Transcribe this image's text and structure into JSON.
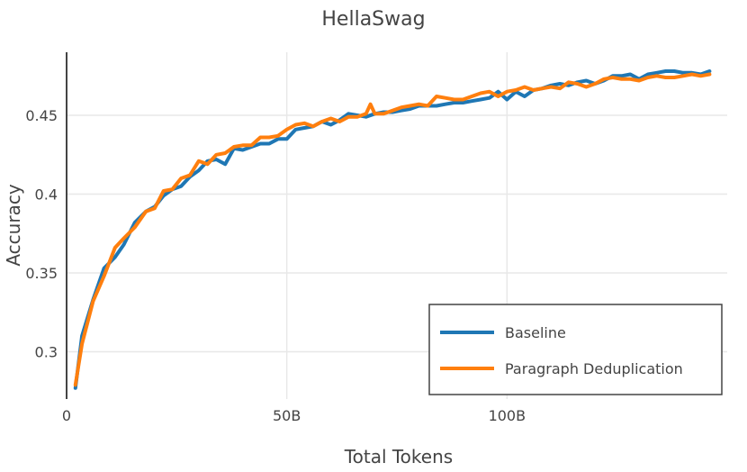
{
  "chart_data": {
    "type": "line",
    "title": "HellaSwag",
    "xlabel": "Total Tokens",
    "ylabel": "Accuracy",
    "x_unit": "tokens (billions)",
    "xlim": [
      0,
      150
    ],
    "ylim": [
      0.27,
      0.49
    ],
    "x_ticks": [
      {
        "value": 0,
        "label": "0"
      },
      {
        "value": 50,
        "label": "50B"
      },
      {
        "value": 100,
        "label": "100B"
      }
    ],
    "y_ticks": [
      {
        "value": 0.3,
        "label": "0.3"
      },
      {
        "value": 0.35,
        "label": "0.35"
      },
      {
        "value": 0.4,
        "label": "0.4"
      },
      {
        "value": 0.45,
        "label": "0.45"
      }
    ],
    "grid": true,
    "legend_position": "bottom-right",
    "series": [
      {
        "name": "Baseline",
        "color": "#1f77b4",
        "points": [
          [
            2,
            0.277
          ],
          [
            3.5,
            0.31
          ],
          [
            6,
            0.333
          ],
          [
            8.5,
            0.353
          ],
          [
            11,
            0.36
          ],
          [
            13,
            0.368
          ],
          [
            15.5,
            0.382
          ],
          [
            18,
            0.389
          ],
          [
            20,
            0.392
          ],
          [
            22,
            0.399
          ],
          [
            24,
            0.403
          ],
          [
            26,
            0.405
          ],
          [
            28,
            0.411
          ],
          [
            30,
            0.415
          ],
          [
            32,
            0.421
          ],
          [
            34,
            0.422
          ],
          [
            36,
            0.419
          ],
          [
            38,
            0.429
          ],
          [
            40,
            0.428
          ],
          [
            42,
            0.43
          ],
          [
            44,
            0.432
          ],
          [
            46,
            0.432
          ],
          [
            48,
            0.435
          ],
          [
            50,
            0.435
          ],
          [
            52,
            0.441
          ],
          [
            54,
            0.442
          ],
          [
            56,
            0.443
          ],
          [
            58,
            0.446
          ],
          [
            60,
            0.444
          ],
          [
            62,
            0.447
          ],
          [
            64,
            0.451
          ],
          [
            66,
            0.45
          ],
          [
            68,
            0.449
          ],
          [
            70,
            0.451
          ],
          [
            72,
            0.452
          ],
          [
            74,
            0.452
          ],
          [
            76,
            0.453
          ],
          [
            78,
            0.454
          ],
          [
            80,
            0.456
          ],
          [
            82,
            0.456
          ],
          [
            84,
            0.456
          ],
          [
            86,
            0.457
          ],
          [
            88,
            0.458
          ],
          [
            90,
            0.458
          ],
          [
            92,
            0.459
          ],
          [
            94,
            0.46
          ],
          [
            96,
            0.461
          ],
          [
            98,
            0.465
          ],
          [
            100,
            0.46
          ],
          [
            102,
            0.465
          ],
          [
            104,
            0.462
          ],
          [
            106,
            0.466
          ],
          [
            108,
            0.467
          ],
          [
            110,
            0.469
          ],
          [
            112,
            0.47
          ],
          [
            114,
            0.469
          ],
          [
            116,
            0.471
          ],
          [
            118,
            0.472
          ],
          [
            120,
            0.47
          ],
          [
            122,
            0.472
          ],
          [
            124,
            0.475
          ],
          [
            126,
            0.475
          ],
          [
            128,
            0.476
          ],
          [
            130,
            0.473
          ],
          [
            132,
            0.476
          ],
          [
            134,
            0.477
          ],
          [
            136,
            0.478
          ],
          [
            138,
            0.478
          ],
          [
            140,
            0.477
          ],
          [
            142,
            0.477
          ],
          [
            144,
            0.476
          ],
          [
            146,
            0.478
          ]
        ]
      },
      {
        "name": "Paragraph Deduplication",
        "color": "#ff7f0e",
        "points": [
          [
            2,
            0.279
          ],
          [
            3.5,
            0.305
          ],
          [
            6,
            0.332
          ],
          [
            8.5,
            0.348
          ],
          [
            11,
            0.366
          ],
          [
            13,
            0.372
          ],
          [
            15.5,
            0.379
          ],
          [
            18,
            0.389
          ],
          [
            20,
            0.391
          ],
          [
            22,
            0.402
          ],
          [
            24,
            0.403
          ],
          [
            26,
            0.41
          ],
          [
            28,
            0.412
          ],
          [
            30,
            0.421
          ],
          [
            32,
            0.419
          ],
          [
            34,
            0.425
          ],
          [
            36,
            0.426
          ],
          [
            38,
            0.43
          ],
          [
            40,
            0.431
          ],
          [
            42,
            0.431
          ],
          [
            44,
            0.436
          ],
          [
            46,
            0.436
          ],
          [
            48,
            0.437
          ],
          [
            50,
            0.441
          ],
          [
            52,
            0.444
          ],
          [
            54,
            0.445
          ],
          [
            56,
            0.443
          ],
          [
            58,
            0.446
          ],
          [
            60,
            0.448
          ],
          [
            62,
            0.446
          ],
          [
            64,
            0.449
          ],
          [
            66,
            0.449
          ],
          [
            68,
            0.451
          ],
          [
            69,
            0.457
          ],
          [
            70,
            0.451
          ],
          [
            72,
            0.451
          ],
          [
            74,
            0.453
          ],
          [
            76,
            0.455
          ],
          [
            78,
            0.456
          ],
          [
            80,
            0.457
          ],
          [
            82,
            0.456
          ],
          [
            84,
            0.462
          ],
          [
            86,
            0.461
          ],
          [
            88,
            0.46
          ],
          [
            90,
            0.46
          ],
          [
            92,
            0.462
          ],
          [
            94,
            0.464
          ],
          [
            96,
            0.465
          ],
          [
            98,
            0.462
          ],
          [
            100,
            0.465
          ],
          [
            102,
            0.466
          ],
          [
            104,
            0.468
          ],
          [
            106,
            0.466
          ],
          [
            108,
            0.467
          ],
          [
            110,
            0.468
          ],
          [
            112,
            0.467
          ],
          [
            114,
            0.471
          ],
          [
            116,
            0.47
          ],
          [
            118,
            0.468
          ],
          [
            120,
            0.47
          ],
          [
            122,
            0.473
          ],
          [
            124,
            0.474
          ],
          [
            126,
            0.473
          ],
          [
            128,
            0.473
          ],
          [
            130,
            0.472
          ],
          [
            132,
            0.474
          ],
          [
            134,
            0.475
          ],
          [
            136,
            0.474
          ],
          [
            138,
            0.474
          ],
          [
            140,
            0.475
          ],
          [
            142,
            0.476
          ],
          [
            144,
            0.475
          ],
          [
            146,
            0.476
          ]
        ]
      }
    ]
  }
}
